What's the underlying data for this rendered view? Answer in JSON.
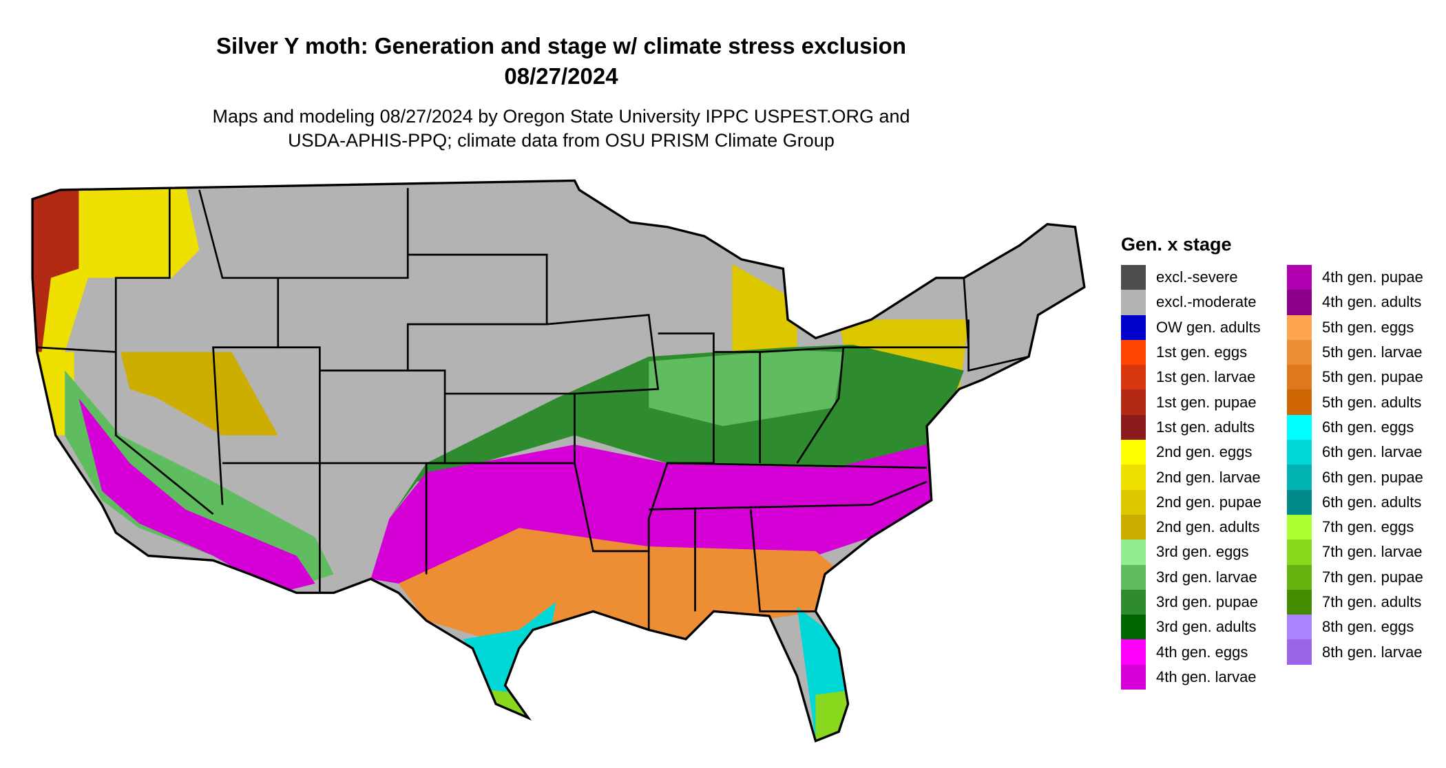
{
  "header": {
    "title_line1": "Silver Y moth: Generation and stage w/ climate stress exclusion",
    "title_line2": "08/27/2024",
    "subtitle_line1": "Maps and modeling 08/27/2024 by Oregon State University IPPC USPEST.ORG and",
    "subtitle_line2": "USDA-APHIS-PPQ; climate data from OSU PRISM Climate Group"
  },
  "legend": {
    "title": "Gen. x stage",
    "items": [
      {
        "label": "excl.-severe",
        "color": "#4d4d4d"
      },
      {
        "label": "excl.-moderate",
        "color": "#b3b3b3"
      },
      {
        "label": "OW gen. adults",
        "color": "#0000cd"
      },
      {
        "label": "1st gen. eggs",
        "color": "#ff4500"
      },
      {
        "label": "1st gen. larvae",
        "color": "#d8360c"
      },
      {
        "label": "1st gen. pupae",
        "color": "#b22a14"
      },
      {
        "label": "1st gen. adults",
        "color": "#8b1a1a"
      },
      {
        "label": "2nd gen. eggs",
        "color": "#ffff00"
      },
      {
        "label": "2nd gen. larvae",
        "color": "#eee000"
      },
      {
        "label": "2nd gen. pupae",
        "color": "#ddc800"
      },
      {
        "label": "2nd gen. adults",
        "color": "#cdad00"
      },
      {
        "label": "3rd gen. eggs",
        "color": "#90ee90"
      },
      {
        "label": "3rd gen. larvae",
        "color": "#5fbd5f"
      },
      {
        "label": "3rd gen. pupae",
        "color": "#2e8b2e"
      },
      {
        "label": "3rd gen. adults",
        "color": "#006400"
      },
      {
        "label": "4th gen. eggs",
        "color": "#ff00ff"
      },
      {
        "label": "4th gen. larvae",
        "color": "#d500d5"
      },
      {
        "label": "4th gen. pupae",
        "color": "#b000b0"
      },
      {
        "label": "4th gen. adults",
        "color": "#8b008b"
      },
      {
        "label": "5th gen. eggs",
        "color": "#ffa54f"
      },
      {
        "label": "5th gen. larvae",
        "color": "#ee8e34"
      },
      {
        "label": "5th gen. pupae",
        "color": "#dd781c"
      },
      {
        "label": "5th gen. adults",
        "color": "#cd6600"
      },
      {
        "label": "6th gen. eggs",
        "color": "#00ffff"
      },
      {
        "label": "6th gen. larvae",
        "color": "#00d8d8"
      },
      {
        "label": "6th gen. pupae",
        "color": "#00b2b2"
      },
      {
        "label": "6th gen. adults",
        "color": "#008b8b"
      },
      {
        "label": "7th gen. eggs",
        "color": "#adff2f"
      },
      {
        "label": "7th gen. larvae",
        "color": "#8ad81e"
      },
      {
        "label": "7th gen. pupae",
        "color": "#66b20e"
      },
      {
        "label": "7th gen. adults",
        "color": "#458b00"
      },
      {
        "label": "8th gen. eggs",
        "color": "#ab82ff"
      },
      {
        "label": "8th gen. larvae",
        "color": "#9b65ea"
      }
    ]
  }
}
